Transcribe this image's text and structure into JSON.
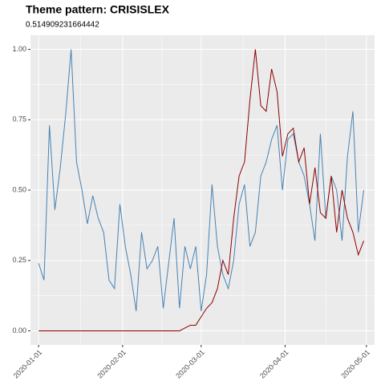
{
  "chart_data": {
    "type": "line",
    "title": "Theme pattern: CRISISLEX",
    "subtitle": "0.514909231664442",
    "x": [
      "2020-01-01",
      "2020-01-03",
      "2020-01-05",
      "2020-01-07",
      "2020-01-09",
      "2020-01-11",
      "2020-01-13",
      "2020-01-15",
      "2020-01-17",
      "2020-01-19",
      "2020-01-21",
      "2020-01-23",
      "2020-01-25",
      "2020-01-27",
      "2020-01-29",
      "2020-01-31",
      "2020-02-02",
      "2020-02-04",
      "2020-02-06",
      "2020-02-08",
      "2020-02-10",
      "2020-02-12",
      "2020-02-14",
      "2020-02-16",
      "2020-02-18",
      "2020-02-20",
      "2020-02-22",
      "2020-02-24",
      "2020-02-26",
      "2020-02-28",
      "2020-03-01",
      "2020-03-03",
      "2020-03-05",
      "2020-03-07",
      "2020-03-09",
      "2020-03-11",
      "2020-03-13",
      "2020-03-15",
      "2020-03-17",
      "2020-03-19",
      "2020-03-21",
      "2020-03-23",
      "2020-03-25",
      "2020-03-27",
      "2020-03-29",
      "2020-03-31",
      "2020-04-02",
      "2020-04-04",
      "2020-04-06",
      "2020-04-08",
      "2020-04-10",
      "2020-04-12",
      "2020-04-14",
      "2020-04-16",
      "2020-04-18",
      "2020-04-20",
      "2020-04-22",
      "2020-04-24",
      "2020-04-26",
      "2020-04-28",
      "2020-04-30"
    ],
    "series": [
      {
        "color": "#4682b4",
        "values": [
          0.24,
          0.18,
          0.73,
          0.43,
          0.58,
          0.77,
          1.0,
          0.6,
          0.5,
          0.38,
          0.48,
          0.4,
          0.35,
          0.18,
          0.15,
          0.45,
          0.3,
          0.2,
          0.07,
          0.35,
          0.22,
          0.25,
          0.3,
          0.08,
          0.24,
          0.4,
          0.08,
          0.3,
          0.22,
          0.3,
          0.07,
          0.2,
          0.52,
          0.3,
          0.2,
          0.15,
          0.25,
          0.45,
          0.52,
          0.3,
          0.35,
          0.55,
          0.6,
          0.68,
          0.73,
          0.5,
          0.68,
          0.7,
          0.6,
          0.55,
          0.45,
          0.32,
          0.7,
          0.4,
          0.55,
          0.5,
          0.32,
          0.62,
          0.78,
          0.35,
          0.5
        ]
      },
      {
        "color": "#8b0000",
        "values": [
          0,
          0,
          0,
          0,
          0,
          0,
          0,
          0,
          0,
          0,
          0,
          0,
          0,
          0,
          0,
          0,
          0,
          0,
          0,
          0,
          0,
          0,
          0,
          0,
          0,
          0,
          0,
          0.01,
          0.02,
          0.02,
          0.05,
          0.08,
          0.1,
          0.15,
          0.25,
          0.2,
          0.4,
          0.55,
          0.6,
          0.82,
          1.0,
          0.8,
          0.78,
          0.93,
          0.85,
          0.62,
          0.7,
          0.72,
          0.6,
          0.65,
          0.45,
          0.58,
          0.42,
          0.4,
          0.55,
          0.35,
          0.5,
          0.4,
          0.35,
          0.27,
          0.32
        ]
      }
    ],
    "xlim": [
      "2019-12-29",
      "2020-05-04"
    ],
    "xticks": [
      "2020-01-01",
      "2020-02-01",
      "2020-03-01",
      "2020-04-01",
      "2020-05-01"
    ],
    "ylim": [
      -0.05,
      1.05
    ],
    "yticks": [
      {
        "value": 0,
        "label": "0.00"
      },
      {
        "value": 0.25,
        "label": "0.25"
      },
      {
        "value": 0.5,
        "label": "0.50"
      },
      {
        "value": 0.75,
        "label": "0.75"
      },
      {
        "value": 1,
        "label": "1.00"
      }
    ],
    "grid": true
  }
}
